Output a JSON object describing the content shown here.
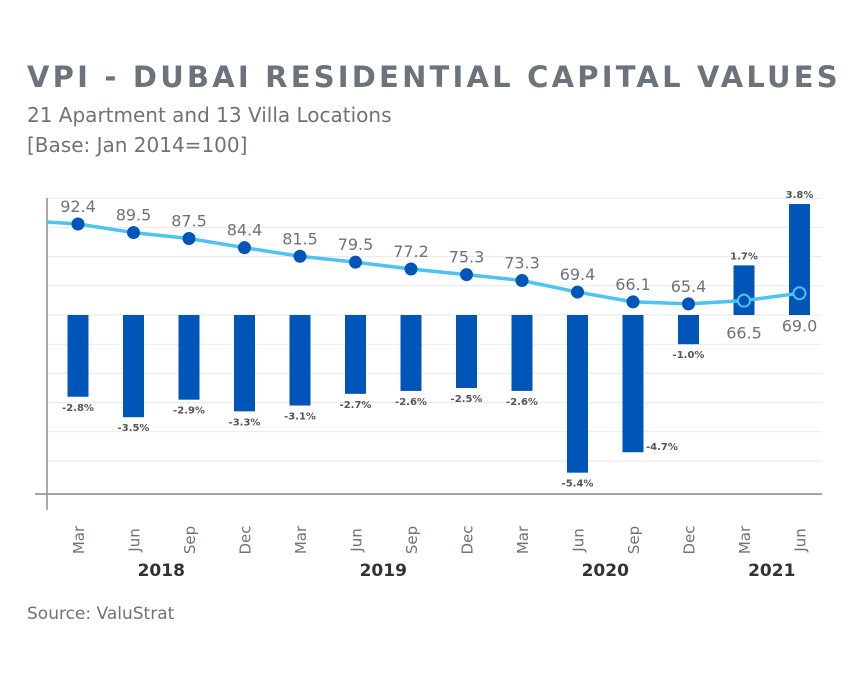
{
  "chart_data": {
    "type": "bar+line",
    "title": "VPI - DUBAI RESIDENTIAL CAPITAL VALUES",
    "subtitle": [
      "21 Apartment and 13 Villa Locations",
      "[Base: Jan 2014=100]"
    ],
    "source": "Source: ValuStrat",
    "categories": [
      "Mar",
      "Jun",
      "Sep",
      "Dec",
      "Mar",
      "Jun",
      "Sep",
      "Dec",
      "Mar",
      "Jun",
      "Sep",
      "Dec",
      "Mar",
      "Jun"
    ],
    "years": [
      {
        "label": "2018",
        "from": 0,
        "to": 3
      },
      {
        "label": "2019",
        "from": 4,
        "to": 7
      },
      {
        "label": "2020",
        "from": 8,
        "to": 11
      },
      {
        "label": "2021",
        "from": 12,
        "to": 13
      }
    ],
    "series": [
      {
        "name": "Change (%)",
        "type": "bar",
        "values": [
          -2.8,
          -3.5,
          -2.9,
          -3.3,
          -3.1,
          -2.7,
          -2.6,
          -2.5,
          -2.6,
          -5.4,
          -4.7,
          -1.0,
          1.7,
          3.8
        ],
        "labels": [
          "-2.8%",
          "-3.5%",
          "-2.9%",
          "-3.3%",
          "-3.1%",
          "-2.7%",
          "-2.6%",
          "-2.5%",
          "-2.6%",
          "-5.4%",
          "-4.7%",
          "-1.0%",
          "1.7%",
          "3.8%"
        ],
        "color": "#0055b8"
      },
      {
        "name": "VPI",
        "type": "line",
        "values": [
          92.4,
          89.5,
          87.5,
          84.4,
          81.5,
          79.5,
          77.2,
          75.3,
          73.3,
          69.4,
          66.1,
          65.4,
          66.5,
          69.0
        ],
        "labels": [
          "92.4",
          "89.5",
          "87.5",
          "84.4",
          "81.5",
          "79.5",
          "77.2",
          "75.3",
          "73.3",
          "69.4",
          "66.1",
          "65.4",
          "66.5",
          "69.0"
        ],
        "color": "#4cc3f0",
        "marker_color": "#0055b8"
      }
    ],
    "bar_ylim": [
      -6,
      4
    ],
    "grid": true
  }
}
